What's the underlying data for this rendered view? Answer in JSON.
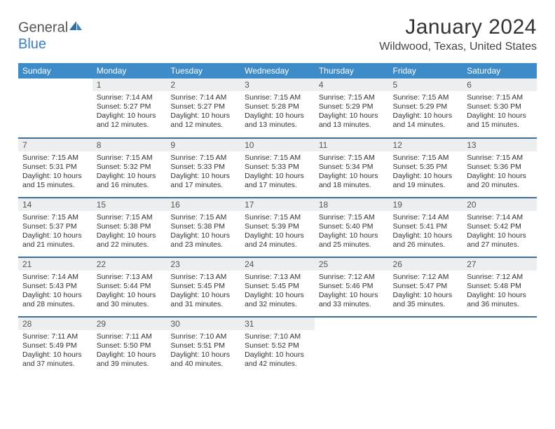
{
  "brand": {
    "part1": "General",
    "part2": "Blue"
  },
  "title": "January 2024",
  "location": "Wildwood, Texas, United States",
  "colors": {
    "header_bg": "#3d8bc8",
    "header_text": "#ffffff",
    "row_divider": "#3d6f9a",
    "daynum_bg": "#eceeef",
    "logo_blue": "#3a7fbf"
  },
  "weekdays": [
    "Sunday",
    "Monday",
    "Tuesday",
    "Wednesday",
    "Thursday",
    "Friday",
    "Saturday"
  ],
  "weeks": [
    [
      null,
      {
        "n": "1",
        "sr": "7:14 AM",
        "ss": "5:27 PM",
        "dl": "10 hours and 12 minutes."
      },
      {
        "n": "2",
        "sr": "7:14 AM",
        "ss": "5:27 PM",
        "dl": "10 hours and 12 minutes."
      },
      {
        "n": "3",
        "sr": "7:15 AM",
        "ss": "5:28 PM",
        "dl": "10 hours and 13 minutes."
      },
      {
        "n": "4",
        "sr": "7:15 AM",
        "ss": "5:29 PM",
        "dl": "10 hours and 13 minutes."
      },
      {
        "n": "5",
        "sr": "7:15 AM",
        "ss": "5:29 PM",
        "dl": "10 hours and 14 minutes."
      },
      {
        "n": "6",
        "sr": "7:15 AM",
        "ss": "5:30 PM",
        "dl": "10 hours and 15 minutes."
      }
    ],
    [
      {
        "n": "7",
        "sr": "7:15 AM",
        "ss": "5:31 PM",
        "dl": "10 hours and 15 minutes."
      },
      {
        "n": "8",
        "sr": "7:15 AM",
        "ss": "5:32 PM",
        "dl": "10 hours and 16 minutes."
      },
      {
        "n": "9",
        "sr": "7:15 AM",
        "ss": "5:33 PM",
        "dl": "10 hours and 17 minutes."
      },
      {
        "n": "10",
        "sr": "7:15 AM",
        "ss": "5:33 PM",
        "dl": "10 hours and 17 minutes."
      },
      {
        "n": "11",
        "sr": "7:15 AM",
        "ss": "5:34 PM",
        "dl": "10 hours and 18 minutes."
      },
      {
        "n": "12",
        "sr": "7:15 AM",
        "ss": "5:35 PM",
        "dl": "10 hours and 19 minutes."
      },
      {
        "n": "13",
        "sr": "7:15 AM",
        "ss": "5:36 PM",
        "dl": "10 hours and 20 minutes."
      }
    ],
    [
      {
        "n": "14",
        "sr": "7:15 AM",
        "ss": "5:37 PM",
        "dl": "10 hours and 21 minutes."
      },
      {
        "n": "15",
        "sr": "7:15 AM",
        "ss": "5:38 PM",
        "dl": "10 hours and 22 minutes."
      },
      {
        "n": "16",
        "sr": "7:15 AM",
        "ss": "5:38 PM",
        "dl": "10 hours and 23 minutes."
      },
      {
        "n": "17",
        "sr": "7:15 AM",
        "ss": "5:39 PM",
        "dl": "10 hours and 24 minutes."
      },
      {
        "n": "18",
        "sr": "7:15 AM",
        "ss": "5:40 PM",
        "dl": "10 hours and 25 minutes."
      },
      {
        "n": "19",
        "sr": "7:14 AM",
        "ss": "5:41 PM",
        "dl": "10 hours and 26 minutes."
      },
      {
        "n": "20",
        "sr": "7:14 AM",
        "ss": "5:42 PM",
        "dl": "10 hours and 27 minutes."
      }
    ],
    [
      {
        "n": "21",
        "sr": "7:14 AM",
        "ss": "5:43 PM",
        "dl": "10 hours and 28 minutes."
      },
      {
        "n": "22",
        "sr": "7:13 AM",
        "ss": "5:44 PM",
        "dl": "10 hours and 30 minutes."
      },
      {
        "n": "23",
        "sr": "7:13 AM",
        "ss": "5:45 PM",
        "dl": "10 hours and 31 minutes."
      },
      {
        "n": "24",
        "sr": "7:13 AM",
        "ss": "5:45 PM",
        "dl": "10 hours and 32 minutes."
      },
      {
        "n": "25",
        "sr": "7:12 AM",
        "ss": "5:46 PM",
        "dl": "10 hours and 33 minutes."
      },
      {
        "n": "26",
        "sr": "7:12 AM",
        "ss": "5:47 PM",
        "dl": "10 hours and 35 minutes."
      },
      {
        "n": "27",
        "sr": "7:12 AM",
        "ss": "5:48 PM",
        "dl": "10 hours and 36 minutes."
      }
    ],
    [
      {
        "n": "28",
        "sr": "7:11 AM",
        "ss": "5:49 PM",
        "dl": "10 hours and 37 minutes."
      },
      {
        "n": "29",
        "sr": "7:11 AM",
        "ss": "5:50 PM",
        "dl": "10 hours and 39 minutes."
      },
      {
        "n": "30",
        "sr": "7:10 AM",
        "ss": "5:51 PM",
        "dl": "10 hours and 40 minutes."
      },
      {
        "n": "31",
        "sr": "7:10 AM",
        "ss": "5:52 PM",
        "dl": "10 hours and 42 minutes."
      },
      null,
      null,
      null
    ]
  ],
  "labels": {
    "sunrise": "Sunrise: ",
    "sunset": "Sunset: ",
    "daylight": "Daylight: "
  }
}
